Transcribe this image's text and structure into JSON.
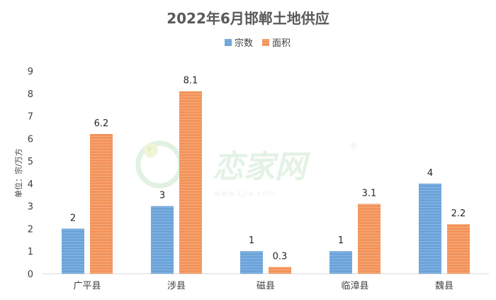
{
  "chart_data": {
    "type": "bar",
    "title": "2022年6月邯郸土地供应",
    "ylabel": "单位：宗/万方",
    "xlabel": "",
    "categories": [
      "广平县",
      "涉县",
      "磁县",
      "临漳县",
      "魏县"
    ],
    "series": [
      {
        "name": "宗数",
        "values": [
          2,
          3,
          1,
          1,
          4
        ],
        "color": "#6aa3d9"
      },
      {
        "name": "面积",
        "values": [
          6.2,
          8.1,
          0.3,
          3.1,
          2.2
        ],
        "color": "#f2935a"
      }
    ],
    "value_labels": [
      [
        "2",
        "3",
        "1",
        "1",
        "4"
      ],
      [
        "6.2",
        "8.1",
        "0.3",
        "3.1",
        "2.2"
      ]
    ],
    "ylim": [
      0,
      9
    ],
    "yticks": [
      "0",
      "1",
      "2",
      "3",
      "4",
      "5",
      "6",
      "7",
      "8",
      "9"
    ],
    "grid": false,
    "legend_position": "top-center"
  },
  "watermark": {
    "brand": "恋家网",
    "url": "www.Ljia.com",
    "registered": "®"
  }
}
